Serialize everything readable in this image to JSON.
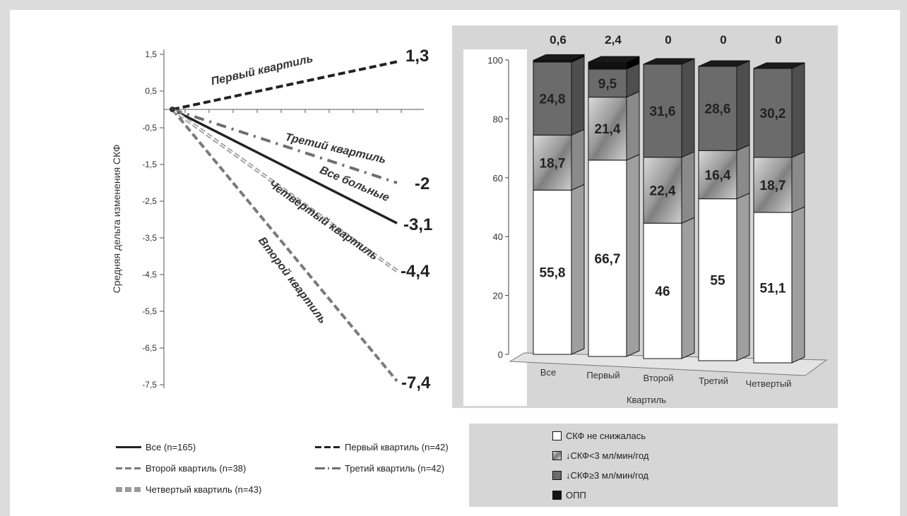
{
  "chart_data": [
    {
      "type": "line",
      "ylabel": "Средняя дельта изменения СКФ",
      "y_ticks": [
        "1,5",
        "0,5",
        "-0,5",
        "-1,5",
        "-2,5",
        "-3,5",
        "-4,5",
        "-5,5",
        "-6,5",
        "-7,5"
      ],
      "y_tick_values": [
        1.5,
        0.5,
        -0.5,
        -1.5,
        -2.5,
        -3.5,
        -4.5,
        -5.5,
        -6.5,
        -7.5
      ],
      "ylim": [
        -7.5,
        1.5
      ],
      "grid": false,
      "series": [
        {
          "key": "all",
          "name": "Все больные",
          "start": 0,
          "end": -3.1,
          "end_label": "-3,1",
          "color": "#222222",
          "style": "solid"
        },
        {
          "key": "q1",
          "name": "Первый квартиль",
          "start": 0,
          "end": 1.3,
          "end_label": "1,3",
          "color": "#222222",
          "style": "dash"
        },
        {
          "key": "q2",
          "name": "Второй квартиль",
          "start": 0,
          "end": -7.4,
          "end_label": "-7,4",
          "color": "#7a7a7a",
          "style": "dash"
        },
        {
          "key": "q3",
          "name": "Третий квартиль",
          "start": 0,
          "end": -2.0,
          "end_label": "-2",
          "color": "#6e6e6e",
          "style": "dashdot"
        },
        {
          "key": "q4",
          "name": "Четвертый квартиль",
          "start": 0,
          "end": -4.4,
          "end_label": "-4,4",
          "color": "#9a9a9a",
          "style": "double"
        }
      ]
    },
    {
      "type": "bar",
      "stacked": true,
      "xlabel": "Квартиль",
      "categories": [
        "Все",
        "Первый",
        "Второй",
        "Третий",
        "Четвертый"
      ],
      "y_ticks": [
        "0",
        "20",
        "40",
        "60",
        "80",
        "100"
      ],
      "ylim": [
        0,
        100
      ],
      "series": [
        {
          "name": "СКФ не снижалась",
          "values": [
            55.8,
            66.7,
            46,
            55,
            51.1
          ],
          "labels": [
            "55,8",
            "66,7",
            "46",
            "55",
            "51,1"
          ],
          "color": "#ffffff"
        },
        {
          "name": "↓СКФ<3 мл/мин/год",
          "values": [
            18.7,
            21.4,
            22.4,
            16.4,
            18.7
          ],
          "labels": [
            "18,7",
            "21,4",
            "22,4",
            "16,4",
            "18,7"
          ],
          "color": "#a8a8a8"
        },
        {
          "name": "↓СКФ≥3 мл/мин/год",
          "values": [
            24.8,
            9.5,
            31.6,
            28.6,
            30.2
          ],
          "labels": [
            "24,8",
            "9,5",
            "31,6",
            "28,6",
            "30,2"
          ],
          "color": "#6b6b6b"
        },
        {
          "name": "ОПП",
          "values": [
            0.6,
            2.4,
            0,
            0,
            0
          ],
          "labels": [
            "0,6",
            "2,4",
            "0",
            "0",
            "0"
          ],
          "color": "#111111"
        }
      ]
    }
  ],
  "line_legend": [
    {
      "label": "Все (n=165)",
      "color": "#222222",
      "style": "solid"
    },
    {
      "label": "Первый квартиль (n=42)",
      "color": "#222222",
      "style": "dash"
    },
    {
      "label": "Второй квартиль (n=38)",
      "color": "#7a7a7a",
      "style": "dash"
    },
    {
      "label": "Третий квартиль (n=42)",
      "color": "#6e6e6e",
      "style": "dashdot"
    },
    {
      "label": "Четвертый квартиль (n=43)",
      "color": "#9a9a9a",
      "style": "double"
    }
  ]
}
